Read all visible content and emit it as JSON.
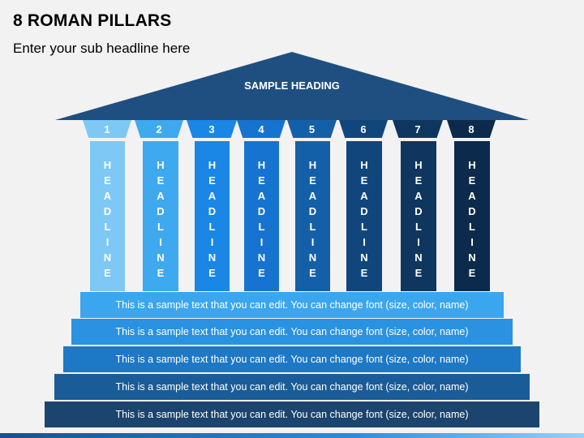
{
  "title": "8 ROMAN PILLARS",
  "subtitle": "Enter your sub headline here",
  "roof": {
    "heading": "SAMPLE HEADING",
    "color": "#1f4f80"
  },
  "pillars": [
    {
      "number": "1",
      "label": "HEADLINE",
      "color": "#7ec8f5"
    },
    {
      "number": "2",
      "label": "HEADLINE",
      "color": "#3fa9f0"
    },
    {
      "number": "3",
      "label": "HEADLINE",
      "color": "#1a86e6"
    },
    {
      "number": "4",
      "label": "HEADLINE",
      "color": "#1673cf"
    },
    {
      "number": "5",
      "label": "HEADLINE",
      "color": "#1460a8"
    },
    {
      "number": "6",
      "label": "HEADLINE",
      "color": "#11467c"
    },
    {
      "number": "7",
      "label": "HEADLINE",
      "color": "#0f365f"
    },
    {
      "number": "8",
      "label": "HEADLINE",
      "color": "#0c2a4b"
    }
  ],
  "steps": [
    {
      "text": "This is a sample text that you can edit. You can change font (size, color, name)",
      "color": "#3aa6ee"
    },
    {
      "text": "This is a sample text that you can edit. You can change font (size, color, name)",
      "color": "#2a92e0"
    },
    {
      "text": "This is a sample text that you can edit. You can change font (size, color, name)",
      "color": "#1d78c6"
    },
    {
      "text": "This is a sample text that you can edit. You can change font (size, color, name)",
      "color": "#1a5c98"
    },
    {
      "text": "This is a sample text that you can edit. You can change font (size, color, name)",
      "color": "#1b446e"
    }
  ]
}
